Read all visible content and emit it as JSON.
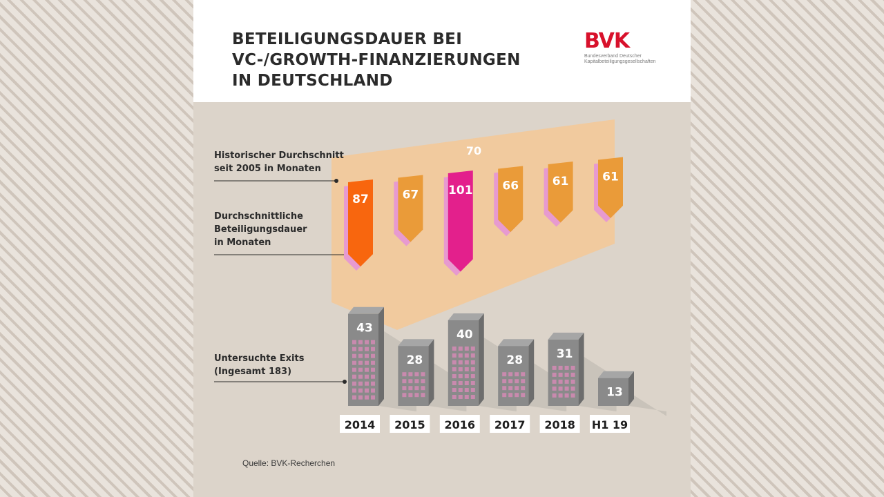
{
  "header": {
    "title": "BETEILIGUNGSDAUER BEI\nVC-/GROWTH-FINANZIERUNGEN\nIN DEUTSCHLAND",
    "logo_text": "BVK",
    "logo_subtitle": "Bundesverband Deutscher\nKapitalbeteiligungsgesellschaften"
  },
  "labels": {
    "historical": "Historischer Durchschnitt\nseit 2005 in Monaten",
    "duration": "Durchschnittliche\nBeteiligungsdauer\nin Monaten",
    "exits": "Untersuchte Exits\n(Ingesamt 183)"
  },
  "chart_data": {
    "type": "bar",
    "categories": [
      "2014",
      "2015",
      "2016",
      "2017",
      "2018",
      "H1 19"
    ],
    "historical_average": 70,
    "series": [
      {
        "name": "Durchschnittliche Beteiligungsdauer in Monaten",
        "values": [
          87,
          67,
          101,
          66,
          61,
          61
        ]
      },
      {
        "name": "Untersuchte Exits (Ingesamt 183)",
        "values": [
          43,
          28,
          40,
          28,
          31,
          13
        ]
      }
    ],
    "highlight_colors": [
      "#f8660e",
      "#ea9b39",
      "#e3208c",
      "#ea9b39",
      "#ea9b39",
      "#ea9b39"
    ]
  },
  "colors": {
    "duration_default": "#ea9b39",
    "duration_min_year": "#f8660e",
    "duration_max": "#e3208c",
    "duration_shadow": "#e79ad0",
    "plane": "#f4c896",
    "building_front": "#8a8a8a",
    "building_side": "#6d6d6d",
    "building_top": "#a6a6a6",
    "window": "#c98aae"
  },
  "footer": {
    "source": "Quelle: BVK-Recherchen"
  }
}
